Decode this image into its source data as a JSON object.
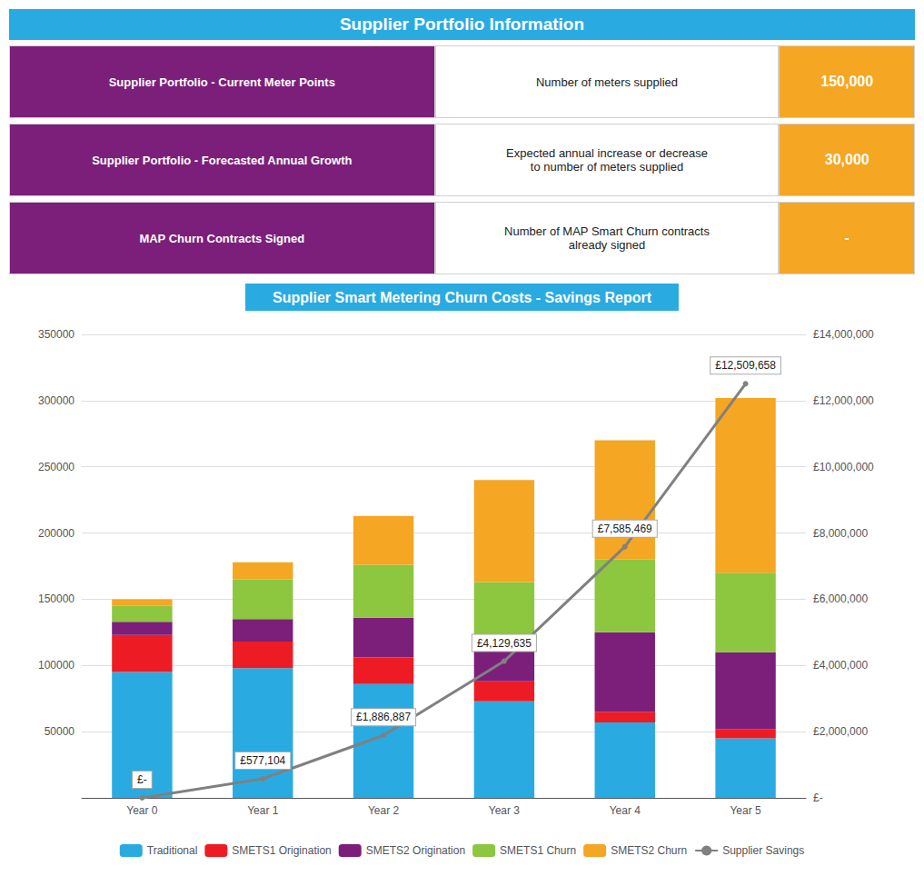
{
  "chart_data": [
    {
      "type": "table",
      "title": "Supplier Portfolio Information",
      "color": "#29ABE2",
      "colors": [
        "#7B1F7A",
        "#FFFFFF",
        "#F5A623"
      ],
      "rows": [
        [
          "Supplier Portfolio - Current Meter Points",
          "Number of meters supplied",
          "150,000"
        ],
        [
          "Supplier Portfolio - Forecasted Annual Growth",
          "Expected annual increase or decrease\nto number of meters supplied",
          "30,000"
        ],
        [
          "MAP Churn Contracts Signed",
          "Number of MAP Smart Churn contracts\nalready signed",
          "-"
        ]
      ]
    },
    {
      "type": "bar",
      "title": "Supplier Smart Metering Churn Costs - Savings Report",
      "categories": [
        "Year 0",
        "Year 1",
        "Year 2",
        "Year 3",
        "Year 4",
        "Year 5"
      ],
      "stacked": true,
      "grid": true,
      "legend": "bottom",
      "series": [
        {
          "name": "Traditional",
          "color": "#29ABE2",
          "values": [
            95000,
            98000,
            86000,
            73000,
            57000,
            45000
          ]
        },
        {
          "name": "SMETS1 Origination",
          "color": "#ED1C24",
          "values": [
            28000,
            20000,
            20000,
            15000,
            8000,
            7000
          ]
        },
        {
          "name": "SMETS2 Origination",
          "color": "#7B1F7A",
          "values": [
            10000,
            17000,
            30000,
            25000,
            60000,
            58000
          ]
        },
        {
          "name": "SMETS1 Churn",
          "color": "#8DC63F",
          "values": [
            12000,
            30000,
            40000,
            50000,
            55000,
            60000
          ]
        },
        {
          "name": "SMETS2 Churn",
          "color": "#F5A623",
          "values": [
            5000,
            13000,
            37000,
            77000,
            90000,
            132000
          ]
        },
        {
          "name": "Supplier Savings",
          "type": "line",
          "axis": "y2",
          "color": "#808080",
          "data_labels": true,
          "values": [
            0,
            577104,
            1886887,
            4129635,
            7585469,
            12509658
          ],
          "value_labels": [
            "£-",
            "£577,104",
            "£1,886,887",
            "£4,129,635",
            "£7,585,469",
            "£12,509,658"
          ]
        }
      ],
      "ylim": [
        0,
        350000
      ],
      "yticks": [
        {
          "value": 0,
          "label": null
        },
        50000,
        100000,
        150000,
        200000,
        250000,
        300000,
        350000
      ],
      "y2lim": [
        0,
        14000000
      ],
      "y2ticks": [
        {
          "value": 0,
          "label": "£-"
        },
        {
          "value": 2000000,
          "label": "£2,000,000"
        },
        {
          "value": 4000000,
          "label": "£4,000,000"
        },
        {
          "value": 6000000,
          "label": "£6,000,000"
        },
        {
          "value": 8000000,
          "label": "£8,000,000"
        },
        {
          "value": 10000000,
          "label": "£10,000,000"
        },
        {
          "value": 12000000,
          "label": "£12,000,000"
        },
        {
          "value": 14000000,
          "label": "£14,000,000"
        }
      ]
    }
  ]
}
